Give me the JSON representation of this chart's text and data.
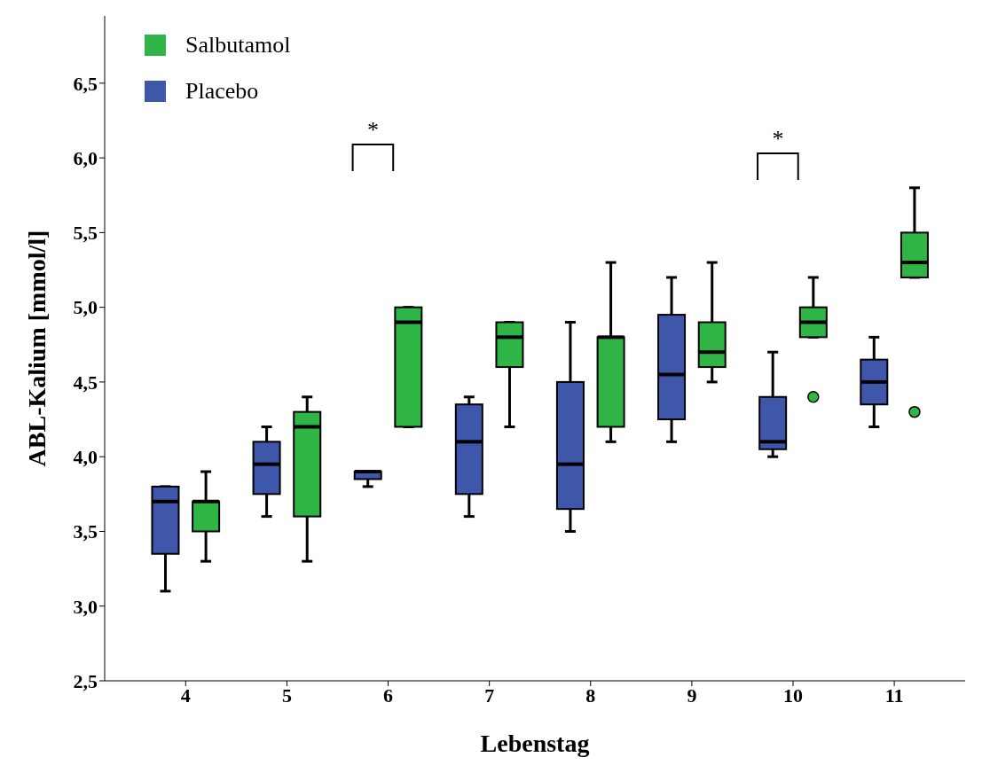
{
  "chart_data": {
    "type": "box",
    "xlabel": "Lebenstag",
    "ylabel": "ABL-Kalium [mmol/l]",
    "categories": [
      "4",
      "5",
      "6",
      "7",
      "8",
      "9",
      "10",
      "11"
    ],
    "ylim": [
      2.5,
      6.95
    ],
    "yticks": [
      {
        "value": 2.5,
        "label": "2,5"
      },
      {
        "value": 3.0,
        "label": "3,0"
      },
      {
        "value": 3.5,
        "label": "3,5"
      },
      {
        "value": 4.0,
        "label": "4,0"
      },
      {
        "value": 4.5,
        "label": "4,5"
      },
      {
        "value": 5.0,
        "label": "5,0"
      },
      {
        "value": 5.5,
        "label": "5,5"
      },
      {
        "value": 6.0,
        "label": "6,0"
      },
      {
        "value": 6.5,
        "label": "6,5"
      }
    ],
    "legend": "top left",
    "series": [
      {
        "name": "Salbutamol",
        "color": "#2fb545",
        "boxes": [
          {
            "low": 3.3,
            "q1": 3.5,
            "median": 3.7,
            "q3": 3.7,
            "high": 3.9
          },
          {
            "low": 3.3,
            "q1": 3.6,
            "median": 4.2,
            "q3": 4.3,
            "high": 4.4
          },
          {
            "low": 4.2,
            "q1": 4.2,
            "median": 4.9,
            "q3": 5.0,
            "high": 5.0
          },
          {
            "low": 4.2,
            "q1": 4.6,
            "median": 4.8,
            "q3": 4.9,
            "high": 4.9
          },
          {
            "low": 4.1,
            "q1": 4.2,
            "median": 4.8,
            "q3": 4.8,
            "high": 5.3
          },
          {
            "low": 4.5,
            "q1": 4.6,
            "median": 4.7,
            "q3": 4.9,
            "high": 5.3
          },
          {
            "low": 4.8,
            "q1": 4.8,
            "median": 4.9,
            "q3": 5.0,
            "high": 5.2,
            "outliers": [
              4.4
            ]
          },
          {
            "low": 5.2,
            "q1": 5.2,
            "median": 5.3,
            "q3": 5.5,
            "high": 5.8,
            "outliers": [
              4.3
            ]
          }
        ]
      },
      {
        "name": "Placebo",
        "color": "#3f57aa",
        "boxes": [
          {
            "low": 3.1,
            "q1": 3.35,
            "median": 3.7,
            "q3": 3.8,
            "high": 3.8
          },
          {
            "low": 3.6,
            "q1": 3.75,
            "median": 3.95,
            "q3": 4.1,
            "high": 4.2
          },
          {
            "low": 3.8,
            "q1": 3.85,
            "median": 3.9,
            "q3": 3.9,
            "high": 3.9
          },
          {
            "low": 3.6,
            "q1": 3.75,
            "median": 4.1,
            "q3": 4.35,
            "high": 4.4
          },
          {
            "low": 3.5,
            "q1": 3.65,
            "median": 3.95,
            "q3": 4.5,
            "high": 4.9
          },
          {
            "low": 4.1,
            "q1": 4.25,
            "median": 4.55,
            "q3": 4.95,
            "high": 5.2
          },
          {
            "low": 4.0,
            "q1": 4.05,
            "median": 4.1,
            "q3": 4.4,
            "high": 4.7
          },
          {
            "low": 4.2,
            "q1": 4.35,
            "median": 4.5,
            "q3": 4.65,
            "high": 4.8
          }
        ]
      }
    ],
    "annotations": [
      "*",
      "*"
    ]
  }
}
